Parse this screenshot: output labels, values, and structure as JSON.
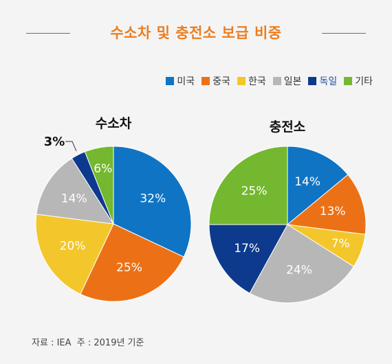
{
  "title": "수소차 및 충전소 보급 비중",
  "legend": [
    {
      "label": "미국",
      "color": "#1074c4"
    },
    {
      "label": "중국",
      "color": "#ec7116"
    },
    {
      "label": "한국",
      "color": "#f3c72b"
    },
    {
      "label": "일본",
      "color": "#b7b7b7"
    },
    {
      "label": "독일",
      "color": "#0d3a8c"
    },
    {
      "label": "기타",
      "color": "#73b82f"
    }
  ],
  "footnote": "자료 : IEA  주 : 2019년 기준",
  "chart_data": [
    {
      "type": "pie",
      "title": "수소차",
      "categories": [
        "미국",
        "중국",
        "한국",
        "일본",
        "독일",
        "기타"
      ],
      "values": [
        32,
        25,
        20,
        14,
        3,
        6
      ],
      "labels": [
        "32%",
        "25%",
        "20%",
        "14%",
        "3%",
        "6%"
      ]
    },
    {
      "type": "pie",
      "title": "충전소",
      "categories": [
        "미국",
        "중국",
        "한국",
        "일본",
        "독일",
        "기타"
      ],
      "values": [
        14,
        13,
        7,
        24,
        17,
        25
      ],
      "labels": [
        "14%",
        "13%",
        "7%",
        "24%",
        "17%",
        "25%"
      ]
    }
  ]
}
